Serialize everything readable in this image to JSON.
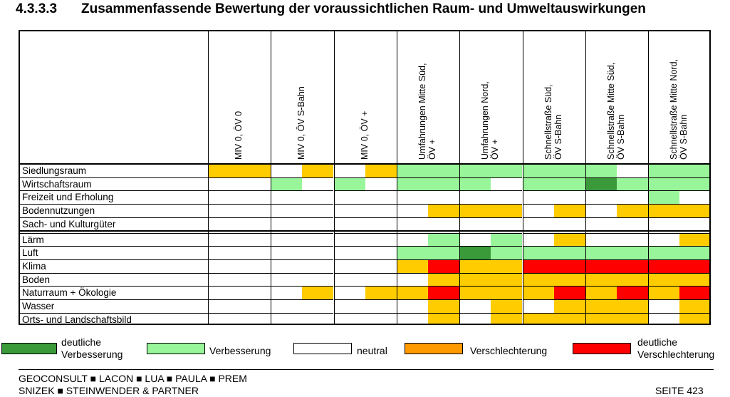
{
  "title": {
    "number": "4.3.3.3",
    "text": "Zusammenfassende Bewertung der voraussichtlichen Raum- und Umweltauswirkungen"
  },
  "columns": [
    "MIV 0, ÖV 0",
    "MIV 0, ÖV S-Bahn",
    "MIV 0, ÖV +",
    "Umfahrungen Mitte Süd,\nÖV +",
    "Umfahrungen Nord,\nÖV +",
    "Schnellstraße Süd,\nÖV S-Bahn",
    "Schnellstraße Mitte Süd,\nÖV S-Bahn",
    "Schnellstraße Mitte Nord,\nÖV S-Bahn"
  ],
  "colors": {
    "dg": "#3a9a3a",
    "g": "#99f599",
    "w": "#ffffff",
    "o": "#ffcc00",
    "r": "#ff0000",
    "legend_orange": "#ff9900"
  },
  "rows": [
    {
      "label": "Siedlungsraum",
      "cells": [
        "o",
        "o",
        "w",
        "o",
        "w",
        "o",
        "g",
        "g",
        "g",
        "g",
        "g",
        "g",
        "g",
        "w",
        "g",
        "g"
      ]
    },
    {
      "label": "Wirtschaftsraum",
      "cells": [
        "w",
        "w",
        "g",
        "w",
        "g",
        "w",
        "g",
        "g",
        "g",
        "w",
        "g",
        "g",
        "dg",
        "g",
        "g",
        "g"
      ]
    },
    {
      "label": "Freizeit und Erholung",
      "cells": [
        "w",
        "w",
        "w",
        "w",
        "w",
        "w",
        "w",
        "w",
        "w",
        "w",
        "w",
        "w",
        "w",
        "w",
        "g",
        "w"
      ]
    },
    {
      "label": "Bodennutzungen",
      "cells": [
        "w",
        "w",
        "w",
        "w",
        "w",
        "w",
        "w",
        "o",
        "o",
        "o",
        "w",
        "o",
        "w",
        "o",
        "o",
        "o"
      ]
    },
    {
      "label": "Sach- und Kulturgüter",
      "cells": [
        "w",
        "w",
        "w",
        "w",
        "w",
        "w",
        "w",
        "w",
        "w",
        "w",
        "w",
        "w",
        "w",
        "w",
        "w",
        "w"
      ]
    },
    {
      "label": "Lärm",
      "cells": [
        "w",
        "w",
        "w",
        "w",
        "w",
        "w",
        "w",
        "g",
        "w",
        "g",
        "w",
        "o",
        "w",
        "w",
        "w",
        "o"
      ]
    },
    {
      "label": "Luft",
      "cells": [
        "w",
        "w",
        "w",
        "w",
        "w",
        "w",
        "g",
        "g",
        "dg",
        "g",
        "g",
        "g",
        "g",
        "g",
        "g",
        "g"
      ]
    },
    {
      "label": "Klima",
      "cells": [
        "w",
        "w",
        "w",
        "w",
        "w",
        "w",
        "o",
        "r",
        "o",
        "o",
        "r",
        "r",
        "r",
        "r",
        "r",
        "r"
      ]
    },
    {
      "label": "Boden",
      "cells": [
        "w",
        "w",
        "w",
        "w",
        "w",
        "w",
        "w",
        "o",
        "o",
        "o",
        "o",
        "o",
        "o",
        "o",
        "o",
        "o"
      ]
    },
    {
      "label": "Naturraum + Ökologie",
      "cells": [
        "w",
        "w",
        "w",
        "o",
        "w",
        "o",
        "o",
        "r",
        "o",
        "o",
        "o",
        "r",
        "o",
        "r",
        "o",
        "r"
      ]
    },
    {
      "label": "Wasser",
      "cells": [
        "w",
        "w",
        "w",
        "w",
        "w",
        "w",
        "w",
        "o",
        "w",
        "o",
        "w",
        "o",
        "o",
        "o",
        "w",
        "o"
      ]
    },
    {
      "label": "Orts- und Landschaftsbild",
      "cells": [
        "w",
        "w",
        "w",
        "w",
        "w",
        "w",
        "w",
        "o",
        "w",
        "o",
        "o",
        "o",
        "o",
        "o",
        "w",
        "o"
      ]
    }
  ],
  "legend": [
    {
      "label": "deutliche\nVerbesserung",
      "color": "#3a9a3a"
    },
    {
      "label": "Verbesserung",
      "color": "#99f599"
    },
    {
      "label": "neutral",
      "color": "#ffffff"
    },
    {
      "label": "Verschlechterung",
      "color": "#ff9900"
    },
    {
      "label": "deutliche\nVerschlechterung",
      "color": "#ff0000"
    }
  ],
  "footer": {
    "line1": "GEOCONSULT ■ LACON ■ LUA ■ PAULA ■ PREM",
    "line2": "SNIZEK ■ STEINWENDER & PARTNER",
    "page": "SEITE 423"
  }
}
